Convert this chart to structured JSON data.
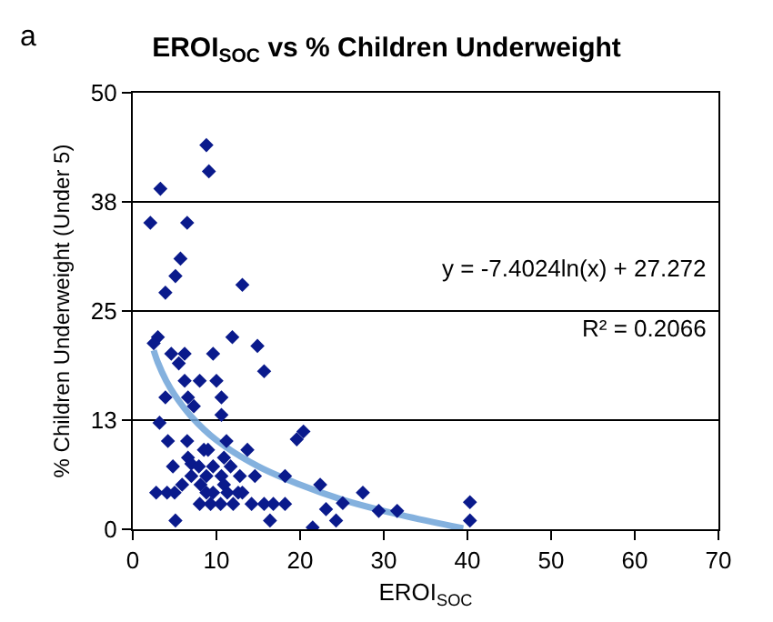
{
  "chart_data": {
    "type": "scatter",
    "title": "EROI$_{SOC}$ vs % Children Underweight",
    "xlabel": "EROI$_{SOC}$",
    "ylabel": "% Children Underweight (Under 5)",
    "annotations": [
      "a",
      "y = -7.4024ln(x) + 27.272",
      "R² = 0.2066"
    ],
    "xlim": [
      0,
      70
    ],
    "xticks": [
      0,
      10,
      20,
      30,
      40,
      50,
      60,
      70
    ],
    "ylim": [
      0,
      50
    ],
    "yticks": [
      0,
      {
        "value": 12.5,
        "label": "13"
      },
      25,
      {
        "value": 37.5,
        "label": "38"
      },
      50
    ],
    "grid": "y",
    "legend": false,
    "marker": "diamond",
    "series": [
      {
        "color": "#0a1a8c",
        "x": [
          8.8,
          9.1,
          3.3,
          2.1,
          6.5,
          5.7,
          5.1,
          3.9,
          13.1,
          3.0,
          2.5,
          11.9,
          14.9,
          15.7,
          4.6,
          5.5,
          6.2,
          9.6,
          6.2,
          8.0,
          10.0,
          3.9,
          6.6,
          7.3,
          10.6,
          10.6,
          3.2,
          4.2,
          6.5,
          8.5,
          9.0,
          11.2,
          13.7,
          4.8,
          6.6,
          7.0,
          7.9,
          9.6,
          10.9,
          11.7,
          5.9,
          7.0,
          8.8,
          10.6,
          12.8,
          14.6,
          18.2,
          19.6,
          20.4,
          2.8,
          4.1,
          5.0,
          8.1,
          8.8,
          9.6,
          10.9,
          11.3,
          12.6,
          13.1,
          8.0,
          9.3,
          10.5,
          12.0,
          14.2,
          15.7,
          16.8,
          18.2,
          5.1,
          16.4,
          22.4,
          23.1,
          24.3,
          21.5,
          27.5,
          25.1,
          29.4,
          31.6,
          40.3,
          40.3
        ],
        "values": [
          44.0,
          41.0,
          39.0,
          35.1,
          35.1,
          31.0,
          29.0,
          27.1,
          28.0,
          22.0,
          21.3,
          22.0,
          21.0,
          18.1,
          20.1,
          19.0,
          20.1,
          20.1,
          17.0,
          17.0,
          17.0,
          15.1,
          15.1,
          14.1,
          15.1,
          13.1,
          12.2,
          10.1,
          10.1,
          9.1,
          9.1,
          10.1,
          9.1,
          7.2,
          8.2,
          7.5,
          7.2,
          7.2,
          8.2,
          7.2,
          5.1,
          6.1,
          6.1,
          6.1,
          6.1,
          6.1,
          6.1,
          10.3,
          11.2,
          4.2,
          4.2,
          4.2,
          5.1,
          4.2,
          4.2,
          5.1,
          4.2,
          4.2,
          4.2,
          2.9,
          2.9,
          2.9,
          2.9,
          2.9,
          2.9,
          2.9,
          2.9,
          1.0,
          1.0,
          5.1,
          2.3,
          1.0,
          0.2,
          4.2,
          3.0,
          2.1,
          2.1,
          3.1,
          1.0
        ]
      },
      {
        "type": "line",
        "marker": "none",
        "color": "#6fa3d8",
        "x": [
          2.5,
          3,
          4,
          5,
          7,
          10,
          15,
          20,
          25,
          30,
          35,
          39.5
        ],
        "values": [
          20.5,
          19.1,
          17.0,
          15.4,
          12.9,
          10.2,
          7.2,
          5.1,
          3.4,
          2.1,
          1.0,
          0.1
        ]
      }
    ]
  }
}
